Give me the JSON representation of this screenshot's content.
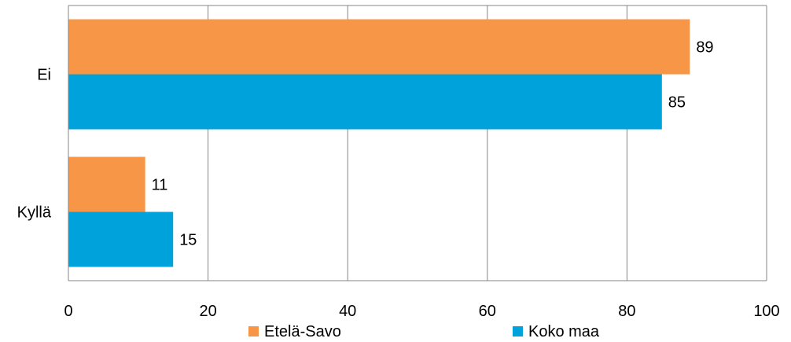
{
  "chart_data": {
    "type": "bar",
    "orientation": "horizontal",
    "categories": [
      "Ei",
      "Kyllä"
    ],
    "series": [
      {
        "name": "Etelä-Savo",
        "values": [
          89,
          11
        ],
        "color": "#F79646"
      },
      {
        "name": "Koko maa",
        "values": [
          85,
          15
        ],
        "color": "#00A2DB"
      }
    ],
    "xlim": [
      0,
      100
    ],
    "xticks": [
      0,
      20,
      40,
      60,
      80,
      100
    ],
    "grid": true,
    "legend_position": "bottom",
    "data_labels": true
  }
}
